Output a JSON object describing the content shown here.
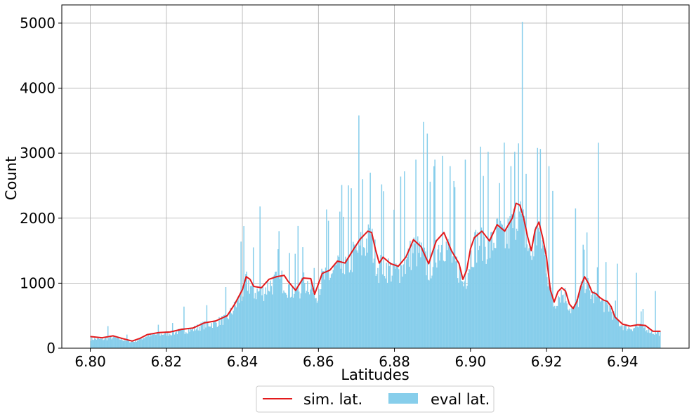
{
  "chart_data": {
    "type": "histogram",
    "title": "",
    "xlabel": "Latitudes",
    "ylabel": "Count",
    "xlim": [
      6.7925,
      6.9575
    ],
    "ylim": [
      0,
      5280
    ],
    "x_ticks": [
      "6.80",
      "6.82",
      "6.84",
      "6.86",
      "6.88",
      "6.90",
      "6.92",
      "6.94"
    ],
    "y_ticks": [
      "0",
      "1000",
      "2000",
      "3000",
      "4000",
      "5000"
    ],
    "grid": true,
    "legend": {
      "placement": "bottom-center, below plot",
      "entries": [
        "sim. lat.",
        "eval lat."
      ]
    },
    "series": [
      {
        "name": "sim. lat.",
        "kind": "line",
        "color": "#e31a1c",
        "x": [
          6.8,
          6.803,
          6.806,
          6.809,
          6.811,
          6.813,
          6.815,
          6.818,
          6.821,
          6.824,
          6.827,
          6.83,
          6.833,
          6.836,
          6.838,
          6.84,
          6.841,
          6.842,
          6.843,
          6.845,
          6.847,
          6.849,
          6.851,
          6.852,
          6.854,
          6.856,
          6.858,
          6.859,
          6.861,
          6.863,
          6.865,
          6.867,
          6.869,
          6.871,
          6.873,
          6.874,
          6.875,
          6.876,
          6.877,
          6.879,
          6.881,
          6.883,
          6.885,
          6.887,
          6.889,
          6.891,
          6.893,
          6.895,
          6.897,
          6.898,
          6.899,
          6.9,
          6.901,
          6.903,
          6.905,
          6.907,
          6.909,
          6.911,
          6.912,
          6.913,
          6.914,
          6.915,
          6.916,
          6.917,
          6.918,
          6.919,
          6.92,
          6.921,
          6.922,
          6.923,
          6.924,
          6.925,
          6.926,
          6.927,
          6.928,
          6.929,
          6.93,
          6.931,
          6.932,
          6.933,
          6.934,
          6.935,
          6.936,
          6.937,
          6.938,
          6.94,
          6.942,
          6.944,
          6.946,
          6.948,
          6.95
        ],
        "y": [
          180,
          160,
          190,
          140,
          110,
          150,
          210,
          240,
          250,
          290,
          310,
          390,
          420,
          500,
          680,
          900,
          1100,
          1060,
          950,
          930,
          1060,
          1100,
          1120,
          1030,
          890,
          1080,
          1070,
          830,
          1150,
          1200,
          1340,
          1310,
          1500,
          1680,
          1800,
          1780,
          1520,
          1310,
          1400,
          1300,
          1260,
          1400,
          1670,
          1560,
          1300,
          1650,
          1780,
          1500,
          1300,
          1060,
          1200,
          1530,
          1700,
          1800,
          1650,
          1900,
          1800,
          2000,
          2230,
          2200,
          2000,
          1720,
          1500,
          1820,
          1940,
          1700,
          1400,
          900,
          710,
          870,
          930,
          880,
          680,
          610,
          720,
          950,
          1100,
          1000,
          860,
          840,
          780,
          740,
          720,
          640,
          480,
          370,
          340,
          360,
          350,
          260,
          260
        ]
      },
      {
        "name": "eval lat.",
        "kind": "bar",
        "color": "#87ceeb",
        "bin_width": 0.00025,
        "x_range": [
          6.8,
          6.95
        ],
        "envelope_x": [
          6.8,
          6.803,
          6.806,
          6.809,
          6.811,
          6.813,
          6.815,
          6.818,
          6.821,
          6.824,
          6.827,
          6.83,
          6.833,
          6.836,
          6.838,
          6.84,
          6.841,
          6.842,
          6.843,
          6.845,
          6.847,
          6.849,
          6.851,
          6.852,
          6.854,
          6.856,
          6.858,
          6.859,
          6.861,
          6.863,
          6.865,
          6.867,
          6.869,
          6.871,
          6.873,
          6.874,
          6.875,
          6.876,
          6.877,
          6.879,
          6.881,
          6.883,
          6.885,
          6.887,
          6.889,
          6.891,
          6.893,
          6.895,
          6.897,
          6.898,
          6.899,
          6.9,
          6.901,
          6.903,
          6.905,
          6.907,
          6.909,
          6.911,
          6.912,
          6.913,
          6.914,
          6.915,
          6.916,
          6.917,
          6.918,
          6.919,
          6.92,
          6.921,
          6.922,
          6.923,
          6.924,
          6.925,
          6.926,
          6.927,
          6.928,
          6.929,
          6.93,
          6.931,
          6.932,
          6.933,
          6.934,
          6.935,
          6.936,
          6.937,
          6.938,
          6.94,
          6.942,
          6.944,
          6.946,
          6.948,
          6.95
        ],
        "envelope_y": [
          150,
          140,
          170,
          130,
          100,
          140,
          200,
          220,
          240,
          270,
          300,
          370,
          400,
          480,
          650,
          860,
          1050,
          1000,
          900,
          880,
          1000,
          1050,
          1070,
          980,
          850,
          1030,
          1020,
          800,
          1100,
          1150,
          1280,
          1250,
          1440,
          1600,
          1700,
          1680,
          1450,
          1250,
          1330,
          1240,
          1200,
          1330,
          1580,
          1480,
          1240,
          1560,
          1690,
          1430,
          1240,
          1010,
          1150,
          1450,
          1620,
          1720,
          1570,
          1800,
          1720,
          1900,
          2120,
          2100,
          1900,
          1640,
          1430,
          1730,
          1840,
          1620,
          1330,
          860,
          680,
          830,
          880,
          840,
          650,
          590,
          690,
          900,
          1050,
          950,
          820,
          800,
          740,
          700,
          680,
          610,
          460,
          350,
          320,
          340,
          330,
          250,
          240
        ],
        "spikes": [
          [
            6.8045,
            340
          ],
          [
            6.8245,
            640
          ],
          [
            6.8395,
            1640
          ],
          [
            6.8445,
            2180
          ],
          [
            6.8495,
            1800
          ],
          [
            6.8545,
            1880
          ],
          [
            6.8625,
            1960
          ],
          [
            6.8655,
            2100
          ],
          [
            6.8665,
            2020
          ],
          [
            6.8685,
            2460
          ],
          [
            6.8705,
            3580
          ],
          [
            6.8715,
            2600
          ],
          [
            6.8735,
            2700
          ],
          [
            6.8765,
            2520
          ],
          [
            6.8815,
            2640
          ],
          [
            6.8825,
            2720
          ],
          [
            6.8855,
            2900
          ],
          [
            6.8875,
            3480
          ],
          [
            6.8885,
            3300
          ],
          [
            6.8905,
            2900
          ],
          [
            6.8925,
            2960
          ],
          [
            6.8945,
            2800
          ],
          [
            6.8985,
            2900
          ],
          [
            6.9025,
            3100
          ],
          [
            6.9045,
            3020
          ],
          [
            6.9075,
            2540
          ],
          [
            6.9105,
            2800
          ],
          [
            6.9115,
            3020
          ],
          [
            6.9125,
            3150
          ],
          [
            6.9135,
            5020
          ],
          [
            6.9145,
            2680
          ],
          [
            6.9175,
            3080
          ],
          [
            6.9205,
            2800
          ],
          [
            6.9215,
            2420
          ],
          [
            6.9275,
            2150
          ],
          [
            6.9305,
            1780
          ],
          [
            6.9335,
            3160
          ],
          [
            6.9385,
            1300
          ],
          [
            6.9435,
            1160
          ],
          [
            6.9485,
            880
          ]
        ]
      }
    ]
  }
}
